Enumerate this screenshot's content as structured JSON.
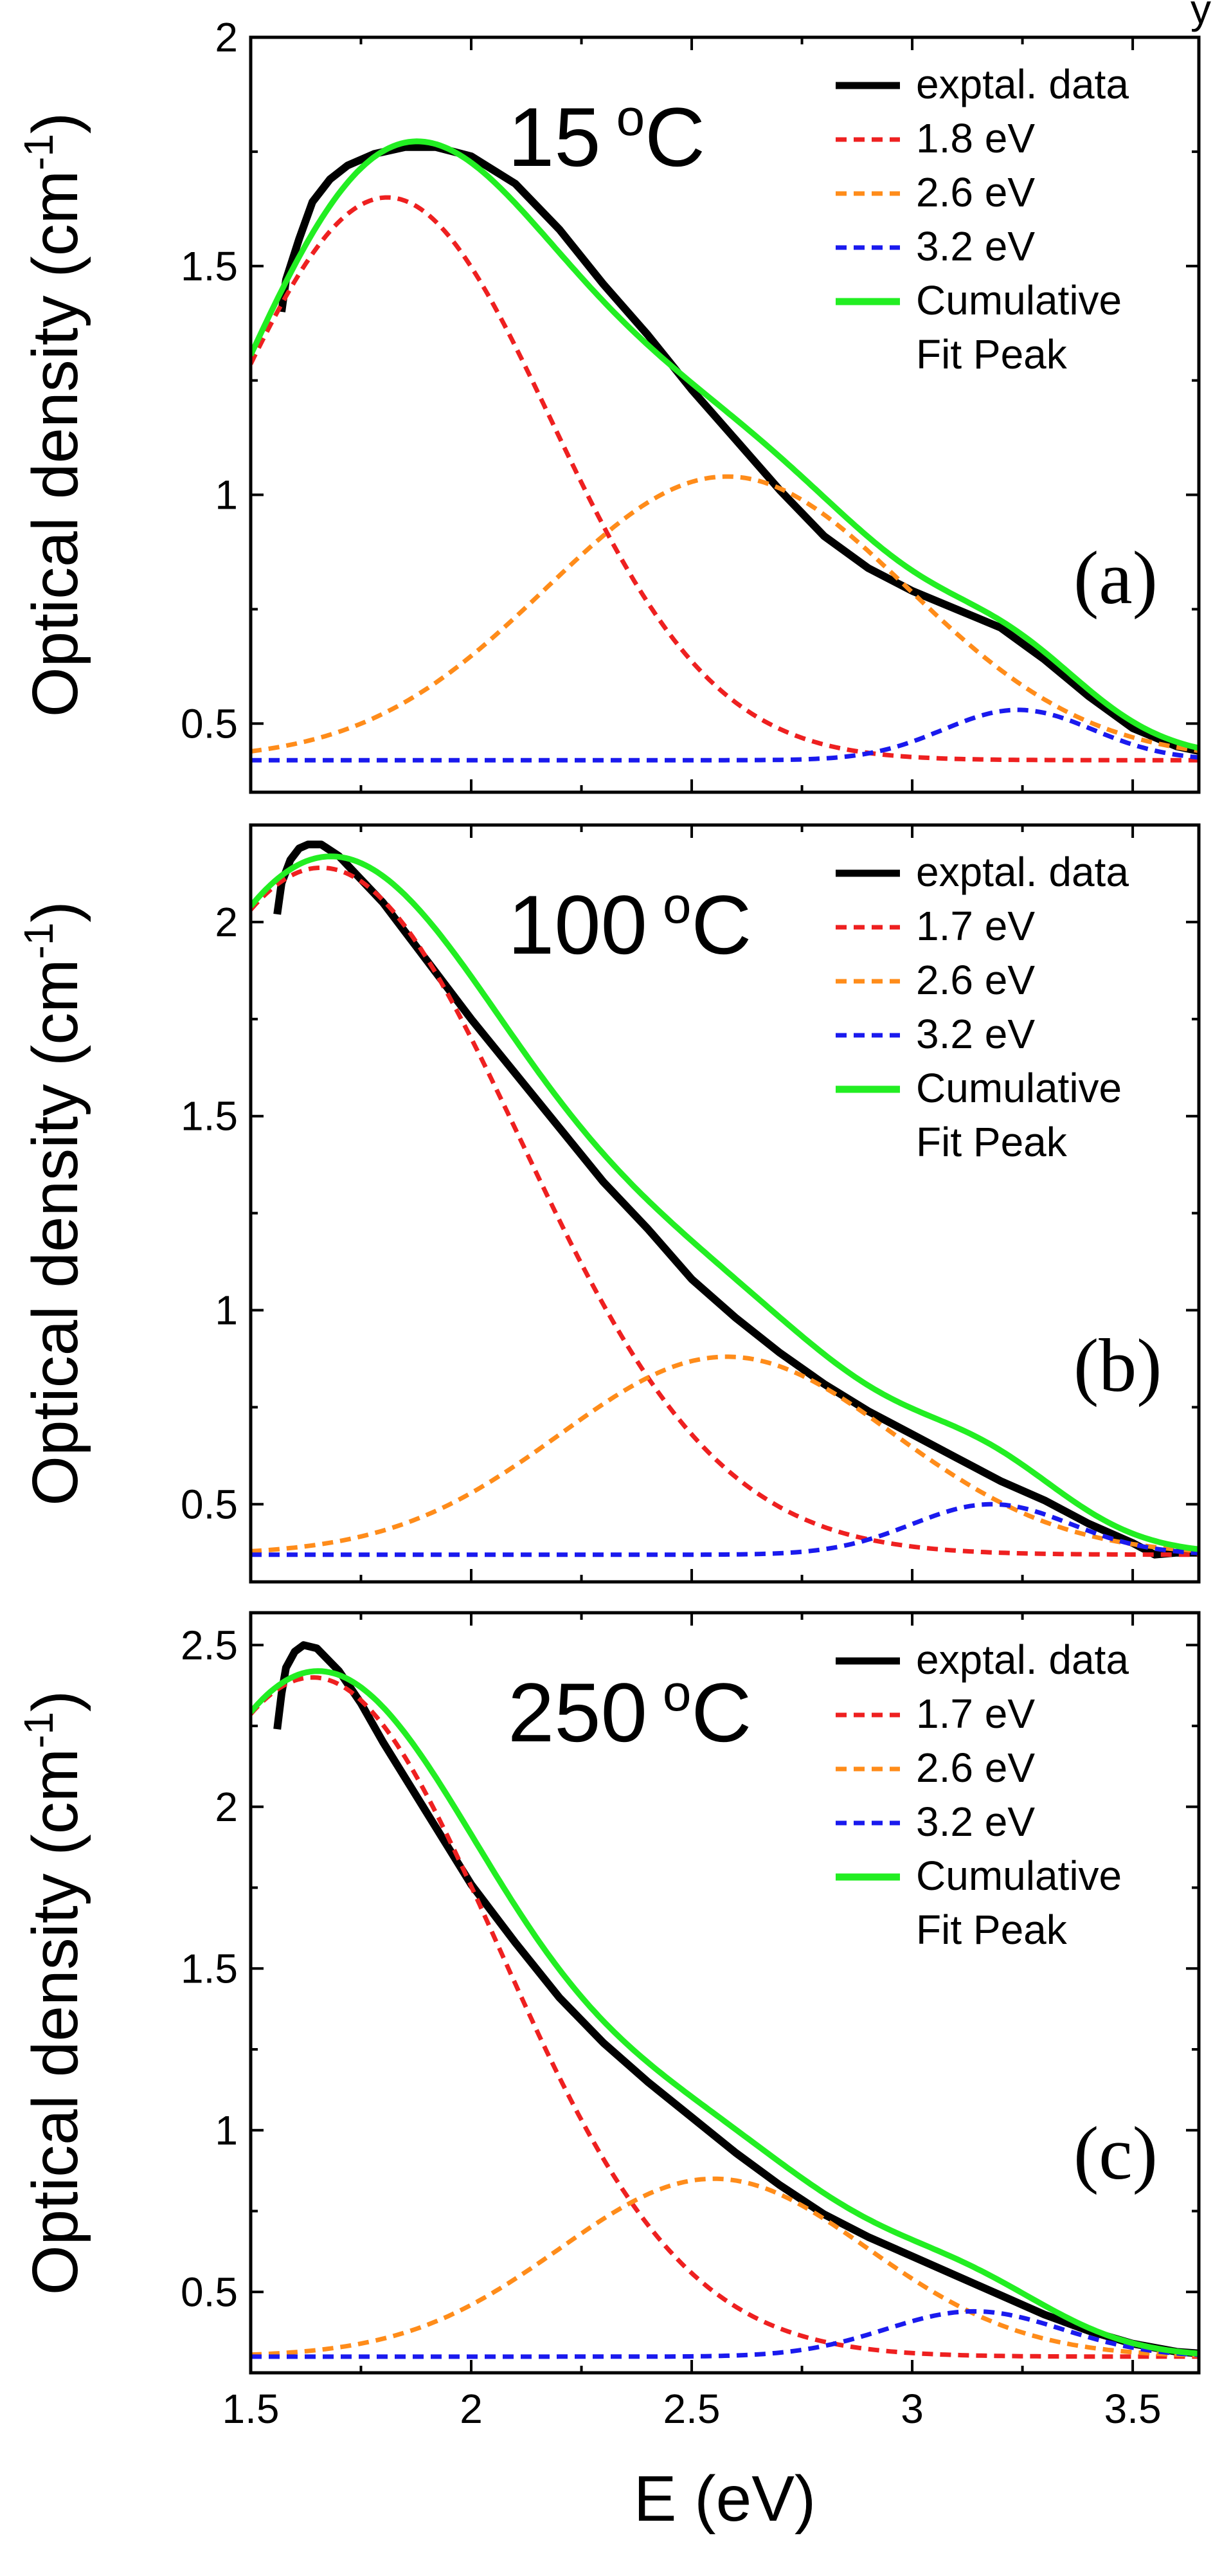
{
  "chart_data": [
    {
      "type": "line",
      "panel_label": "(a)",
      "temperature": {
        "value": "15",
        "unit": "C"
      },
      "ylabel": {
        "text": "Optical density (cm",
        "sup": "-1",
        "close": ")"
      },
      "xlabel": "",
      "xlim": [
        1.5,
        3.65
      ],
      "ylim": [
        0.35,
        2.0
      ],
      "xticks": [
        "1.5",
        "2",
        "2.5",
        "3",
        "3.5"
      ],
      "yticks": [
        "0.5",
        "1",
        "1.5",
        "2"
      ],
      "grid": false,
      "legend_position": "top-right",
      "baseline": 0.42,
      "legend": [
        {
          "label": "exptal. data",
          "style": "solid",
          "color": "#000000"
        },
        {
          "label": "1.8 eV",
          "style": "dashed",
          "color": "#ee2020"
        },
        {
          "label": "2.6 eV",
          "style": "dashed",
          "color": "#ff8c1a"
        },
        {
          "label": "3.2 eV",
          "style": "dashed",
          "color": "#1a1aee"
        },
        {
          "label": "Cumulative",
          "label2": "Fit Peak",
          "style": "solid",
          "color": "#22ee22"
        }
      ],
      "series": [
        {
          "name": "exptal. data",
          "kind": "data",
          "color": "#000000",
          "x": [
            1.57,
            1.58,
            1.61,
            1.64,
            1.68,
            1.72,
            1.78,
            1.85,
            1.92,
            2.0,
            2.1,
            2.2,
            2.3,
            2.4,
            2.5,
            2.6,
            2.7,
            2.8,
            2.9,
            3.0,
            3.1,
            3.2,
            3.3,
            3.4,
            3.5,
            3.6,
            3.65
          ],
          "y": [
            1.4,
            1.47,
            1.56,
            1.64,
            1.69,
            1.72,
            1.745,
            1.76,
            1.76,
            1.74,
            1.68,
            1.58,
            1.46,
            1.35,
            1.23,
            1.12,
            1.01,
            0.91,
            0.84,
            0.79,
            0.75,
            0.71,
            0.64,
            0.56,
            0.49,
            0.45,
            0.44
          ]
        },
        {
          "name": "1.8 eV",
          "kind": "gaussian",
          "color": "#ee2020",
          "center": 1.81,
          "height": 1.23,
          "width": 0.37
        },
        {
          "name": "2.6 eV",
          "kind": "gaussian",
          "color": "#ff8c1a",
          "center": 2.58,
          "height": 0.62,
          "width": 0.41
        },
        {
          "name": "3.2 eV",
          "kind": "gaussian",
          "color": "#1a1aee",
          "center": 3.24,
          "height": 0.11,
          "width": 0.17
        },
        {
          "name": "Cumulative Fit Peak",
          "kind": "sum",
          "color": "#22ee22"
        }
      ]
    },
    {
      "type": "line",
      "panel_label": "(b)",
      "temperature": {
        "value": "100",
        "unit": "C"
      },
      "ylabel": {
        "text": "Optical density (cm",
        "sup": "-1",
        "close": ")"
      },
      "xlabel": "",
      "xlim": [
        1.5,
        3.65
      ],
      "ylim": [
        0.3,
        2.25
      ],
      "xticks": [
        "1.5",
        "2",
        "2.5",
        "3",
        "3.5"
      ],
      "yticks": [
        "0.5",
        "1",
        "1.5",
        "2"
      ],
      "grid": false,
      "legend_position": "top-right",
      "baseline": 0.37,
      "legend": [
        {
          "label": "exptal. data",
          "style": "solid",
          "color": "#000000"
        },
        {
          "label": "1.7 eV",
          "style": "dashed",
          "color": "#ee2020"
        },
        {
          "label": "2.6 eV",
          "style": "dashed",
          "color": "#ff8c1a"
        },
        {
          "label": "3.2 eV",
          "style": "dashed",
          "color": "#1a1aee"
        },
        {
          "label": "Cumulative",
          "label2": "Fit Peak",
          "style": "solid",
          "color": "#22ee22"
        }
      ],
      "series": [
        {
          "name": "exptal. data",
          "kind": "data",
          "color": "#000000",
          "x": [
            1.56,
            1.57,
            1.59,
            1.61,
            1.63,
            1.66,
            1.7,
            1.75,
            1.8,
            1.9,
            2.0,
            2.1,
            2.2,
            2.3,
            2.4,
            2.5,
            2.6,
            2.7,
            2.8,
            2.9,
            3.0,
            3.1,
            3.2,
            3.3,
            3.4,
            3.5,
            3.55,
            3.6,
            3.65
          ],
          "y": [
            2.02,
            2.1,
            2.16,
            2.19,
            2.2,
            2.2,
            2.17,
            2.11,
            2.05,
            1.9,
            1.75,
            1.61,
            1.47,
            1.33,
            1.21,
            1.08,
            0.98,
            0.89,
            0.81,
            0.74,
            0.68,
            0.62,
            0.56,
            0.51,
            0.45,
            0.4,
            0.37,
            0.375,
            0.375
          ]
        },
        {
          "name": "1.7 eV",
          "kind": "gaussian",
          "color": "#ee2020",
          "center": 1.66,
          "height": 1.77,
          "width": 0.45
        },
        {
          "name": "2.6 eV",
          "kind": "gaussian",
          "color": "#ff8c1a",
          "center": 2.58,
          "height": 0.51,
          "width": 0.38
        },
        {
          "name": "3.2 eV",
          "kind": "gaussian",
          "color": "#1a1aee",
          "center": 3.18,
          "height": 0.13,
          "width": 0.18
        },
        {
          "name": "Cumulative Fit Peak",
          "kind": "sum",
          "color": "#22ee22"
        }
      ]
    },
    {
      "type": "line",
      "panel_label": "(c)",
      "temperature": {
        "value": "250",
        "unit": "C"
      },
      "ylabel": {
        "text": "Optical density (cm",
        "sup": "-1",
        "close": ")"
      },
      "xlabel": "E (eV)",
      "xlim": [
        1.5,
        3.65
      ],
      "ylim": [
        0.25,
        2.6
      ],
      "xticks": [
        "1.5",
        "2",
        "2.5",
        "3",
        "3.5"
      ],
      "yticks": [
        "0.5",
        "1",
        "1.5",
        "2",
        "2.5"
      ],
      "grid": false,
      "legend_position": "top-right",
      "baseline": 0.3,
      "legend": [
        {
          "label": "exptal. data",
          "style": "solid",
          "color": "#000000"
        },
        {
          "label": "1.7 eV",
          "style": "dashed",
          "color": "#ee2020"
        },
        {
          "label": "2.6 eV",
          "style": "dashed",
          "color": "#ff8c1a"
        },
        {
          "label": "3.2 eV",
          "style": "dashed",
          "color": "#1a1aee"
        },
        {
          "label": "Cumulative",
          "label2": "Fit Peak",
          "style": "solid",
          "color": "#22ee22"
        }
      ],
      "series": [
        {
          "name": "exptal. data",
          "kind": "data",
          "color": "#000000",
          "x": [
            1.56,
            1.57,
            1.58,
            1.6,
            1.62,
            1.65,
            1.7,
            1.75,
            1.8,
            1.9,
            2.0,
            2.1,
            2.2,
            2.3,
            2.4,
            2.5,
            2.6,
            2.7,
            2.8,
            2.9,
            3.0,
            3.1,
            3.2,
            3.3,
            3.4,
            3.5,
            3.6,
            3.65
          ],
          "y": [
            2.24,
            2.35,
            2.43,
            2.48,
            2.5,
            2.49,
            2.42,
            2.32,
            2.2,
            1.98,
            1.76,
            1.58,
            1.41,
            1.27,
            1.15,
            1.04,
            0.93,
            0.83,
            0.74,
            0.67,
            0.61,
            0.55,
            0.49,
            0.43,
            0.38,
            0.34,
            0.315,
            0.31
          ]
        },
        {
          "name": "1.7 eV",
          "kind": "gaussian",
          "color": "#ee2020",
          "center": 1.64,
          "height": 2.1,
          "width": 0.42
        },
        {
          "name": "2.6 eV",
          "kind": "gaussian",
          "color": "#ff8c1a",
          "center": 2.55,
          "height": 0.55,
          "width": 0.35
        },
        {
          "name": "3.2 eV",
          "kind": "gaussian",
          "color": "#1a1aee",
          "center": 3.14,
          "height": 0.14,
          "width": 0.2
        },
        {
          "name": "Cumulative Fit Peak",
          "kind": "sum",
          "color": "#22ee22"
        }
      ]
    }
  ],
  "corner_mark": "y"
}
